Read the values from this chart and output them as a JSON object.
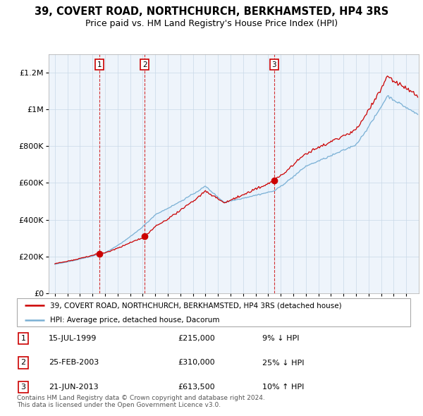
{
  "title": "39, COVERT ROAD, NORTHCHURCH, BERKHAMSTED, HP4 3RS",
  "subtitle": "Price paid vs. HM Land Registry's House Price Index (HPI)",
  "property_label": "39, COVERT ROAD, NORTHCHURCH, BERKHAMSTED, HP4 3RS (detached house)",
  "hpi_label": "HPI: Average price, detached house, Dacorum",
  "sale_dates": [
    1999.54,
    2003.15,
    2013.47
  ],
  "sale_prices": [
    215000,
    310000,
    613500
  ],
  "sale_labels": [
    "1",
    "2",
    "3"
  ],
  "sale_annotations": [
    {
      "label": "1",
      "date": "15-JUL-1999",
      "price": "£215,000",
      "hpi": "9% ↓ HPI"
    },
    {
      "label": "2",
      "date": "25-FEB-2003",
      "price": "£310,000",
      "hpi": "25% ↓ HPI"
    },
    {
      "label": "3",
      "date": "21-JUN-2013",
      "price": "£613,500",
      "hpi": "10% ↑ HPI"
    }
  ],
  "property_color": "#cc0000",
  "hpi_color": "#7ab0d4",
  "fill_color": "#ddeeff",
  "background_color": "#eef4fb",
  "grid_color": "#c8d8e8",
  "ylim": [
    0,
    1300000
  ],
  "xlim_start": 1995.5,
  "xlim_end": 2025.0,
  "footer": "Contains HM Land Registry data © Crown copyright and database right 2024.\nThis data is licensed under the Open Government Licence v3.0.",
  "title_fontsize": 10.5,
  "subtitle_fontsize": 9
}
